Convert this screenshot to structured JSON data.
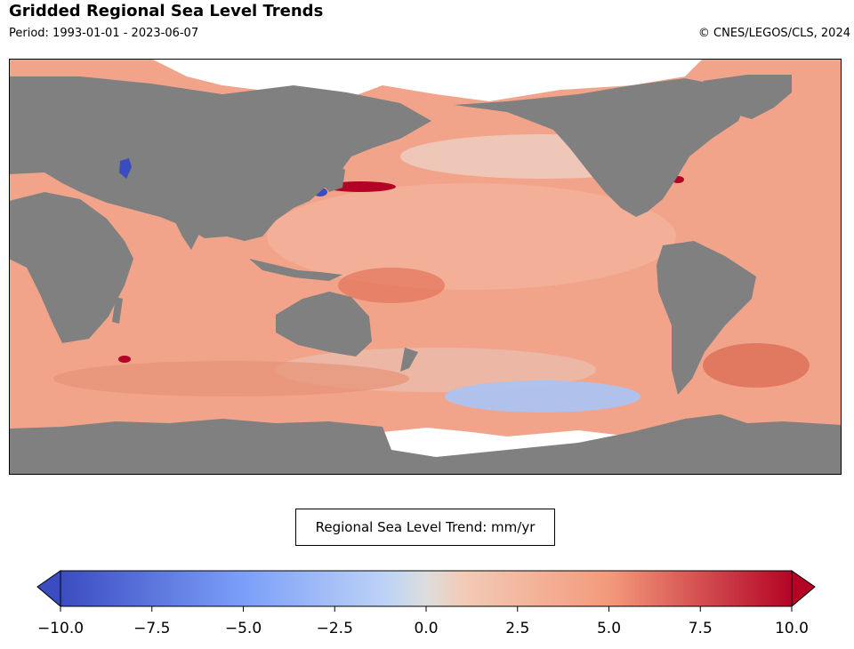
{
  "header": {
    "title": "Gridded Regional Sea Level Trends",
    "period": "Period: 1993-01-01 - 2023-06-07",
    "credit": "© CNES/LEGOS/CLS, 2024"
  },
  "legend": {
    "label": "Regional Sea Level Trend: mm/yr"
  },
  "colorbar": {
    "min": -10,
    "max": 10,
    "ticks": [
      "−10.0",
      "−7.5",
      "−5.0",
      "−2.5",
      "0.0",
      "2.5",
      "5.0",
      "7.5",
      "10.0"
    ],
    "colors": {
      "low": "#3b4cc0",
      "mid": "#dddddd",
      "high": "#b40426"
    }
  },
  "map": {
    "ocean_color": "#f2a48a",
    "land_color": "#808080",
    "ice_color": "#ffffff"
  }
}
